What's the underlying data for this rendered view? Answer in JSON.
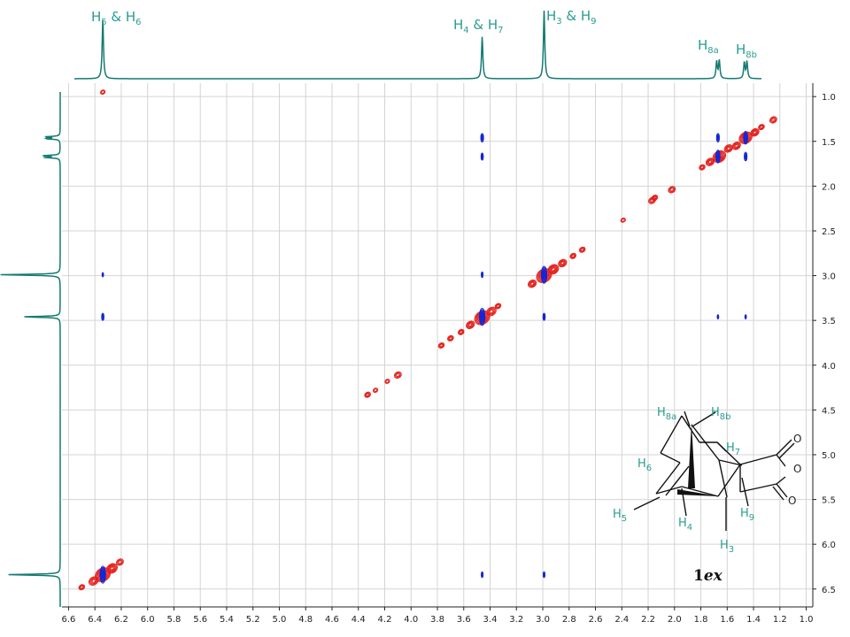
{
  "colors": {
    "trace": "#137a72",
    "label": "#2a9d8f",
    "positive_contour": "#e3201b",
    "negative_contour": "#1526d6",
    "grid": "#d4d4d4",
    "axis": "#222222"
  },
  "top_labels": [
    {
      "html": [
        "H",
        "5",
        " & H",
        "6"
      ],
      "ppm": 6.34
    },
    {
      "html": [
        "H",
        "4",
        " & H",
        "7"
      ],
      "ppm": 3.46
    },
    {
      "html": [
        "H",
        "3",
        " & H",
        "9"
      ],
      "ppm": 2.99
    },
    {
      "html": [
        "H",
        "8a"
      ],
      "ppm": 1.67
    },
    {
      "html": [
        "H",
        "8b"
      ],
      "ppm": 1.46
    }
  ],
  "compound_label": [
    "1",
    "ex"
  ],
  "molecule_labels": [
    {
      "base": "H",
      "sub": "8a"
    },
    {
      "base": "H",
      "sub": "8b"
    },
    {
      "base": "H",
      "sub": "7"
    },
    {
      "base": "H",
      "sub": "6"
    },
    {
      "base": "H",
      "sub": "5"
    },
    {
      "base": "H",
      "sub": "4"
    },
    {
      "base": "H",
      "sub": "9"
    },
    {
      "base": "H",
      "sub": "3"
    },
    {
      "base": "O",
      "sub": ""
    },
    {
      "base": "O",
      "sub": ""
    },
    {
      "base": "O",
      "sub": ""
    }
  ],
  "chart_data": {
    "type": "heatmap",
    "title": "",
    "xlabel": "",
    "ylabel": "",
    "x_axis": {
      "reversed": true,
      "range": [
        6.65,
        0.95
      ],
      "ticks": [
        6.6,
        6.4,
        6.2,
        6.0,
        5.8,
        5.6,
        5.4,
        5.2,
        5.0,
        4.8,
        4.6,
        4.4,
        4.2,
        4.0,
        3.8,
        3.6,
        3.4,
        3.2,
        3.0,
        2.8,
        2.6,
        2.4,
        2.2,
        2.0,
        1.8,
        1.6,
        1.4,
        1.2,
        1.0
      ]
    },
    "y_axis": {
      "reversed": true,
      "range": [
        0.85,
        6.7
      ],
      "ticks": [
        1.0,
        1.5,
        2.0,
        2.5,
        3.0,
        3.5,
        4.0,
        4.5,
        5.0,
        5.5,
        6.0,
        6.5
      ]
    },
    "grid": true,
    "spectrum_1d_peaks": [
      {
        "ppm": 6.34,
        "height": 0.87
      },
      {
        "ppm": 3.46,
        "height": 0.62
      },
      {
        "ppm": 2.99,
        "height": 1.0
      },
      {
        "ppm": 1.68,
        "height": 0.25
      },
      {
        "ppm": 1.66,
        "height": 0.27
      },
      {
        "ppm": 1.47,
        "height": 0.24
      },
      {
        "ppm": 1.45,
        "height": 0.25
      }
    ],
    "positive_peaks": [
      {
        "x": 6.34,
        "y": 0.95,
        "size": 0.4
      },
      {
        "x": 6.34,
        "y": 6.34,
        "size": 1.3
      },
      {
        "x": 6.27,
        "y": 6.27,
        "size": 0.9
      },
      {
        "x": 6.21,
        "y": 6.2,
        "size": 0.6
      },
      {
        "x": 6.41,
        "y": 6.41,
        "size": 0.8
      },
      {
        "x": 6.5,
        "y": 6.48,
        "size": 0.5
      },
      {
        "x": 4.33,
        "y": 4.33,
        "size": 0.5
      },
      {
        "x": 4.27,
        "y": 4.28,
        "size": 0.4
      },
      {
        "x": 4.18,
        "y": 4.18,
        "size": 0.4
      },
      {
        "x": 4.1,
        "y": 4.11,
        "size": 0.6
      },
      {
        "x": 3.77,
        "y": 3.78,
        "size": 0.5
      },
      {
        "x": 3.7,
        "y": 3.7,
        "size": 0.5
      },
      {
        "x": 3.62,
        "y": 3.63,
        "size": 0.5
      },
      {
        "x": 3.55,
        "y": 3.55,
        "size": 0.7
      },
      {
        "x": 3.46,
        "y": 3.47,
        "size": 1.3
      },
      {
        "x": 3.39,
        "y": 3.4,
        "size": 0.8
      },
      {
        "x": 3.34,
        "y": 3.34,
        "size": 0.5
      },
      {
        "x": 3.08,
        "y": 3.09,
        "size": 0.7
      },
      {
        "x": 2.99,
        "y": 3.0,
        "size": 1.3
      },
      {
        "x": 2.92,
        "y": 2.93,
        "size": 0.9
      },
      {
        "x": 2.85,
        "y": 2.86,
        "size": 0.7
      },
      {
        "x": 2.77,
        "y": 2.78,
        "size": 0.5
      },
      {
        "x": 2.7,
        "y": 2.71,
        "size": 0.5
      },
      {
        "x": 2.39,
        "y": 2.38,
        "size": 0.4
      },
      {
        "x": 2.17,
        "y": 2.16,
        "size": 0.6
      },
      {
        "x": 2.15,
        "y": 2.13,
        "size": 0.5
      },
      {
        "x": 2.02,
        "y": 2.04,
        "size": 0.6
      },
      {
        "x": 1.79,
        "y": 1.79,
        "size": 0.5
      },
      {
        "x": 1.73,
        "y": 1.73,
        "size": 0.7
      },
      {
        "x": 1.66,
        "y": 1.67,
        "size": 1.1
      },
      {
        "x": 1.59,
        "y": 1.58,
        "size": 0.7
      },
      {
        "x": 1.53,
        "y": 1.55,
        "size": 0.7
      },
      {
        "x": 1.46,
        "y": 1.46,
        "size": 1.1
      },
      {
        "x": 1.39,
        "y": 1.4,
        "size": 0.7
      },
      {
        "x": 1.34,
        "y": 1.34,
        "size": 0.5
      },
      {
        "x": 1.25,
        "y": 1.26,
        "size": 0.6
      }
    ],
    "negative_peaks": [
      {
        "x": 6.34,
        "y": 2.99,
        "size": 0.3
      },
      {
        "x": 6.34,
        "y": 3.46,
        "size": 0.5
      },
      {
        "x": 6.34,
        "y": 6.34,
        "size": 1.2
      },
      {
        "x": 3.46,
        "y": 1.46,
        "size": 0.6
      },
      {
        "x": 3.46,
        "y": 1.67,
        "size": 0.5
      },
      {
        "x": 3.46,
        "y": 2.99,
        "size": 0.4
      },
      {
        "x": 3.46,
        "y": 3.46,
        "size": 1.2
      },
      {
        "x": 3.46,
        "y": 6.34,
        "size": 0.4
      },
      {
        "x": 2.99,
        "y": 2.99,
        "size": 1.2
      },
      {
        "x": 2.99,
        "y": 3.46,
        "size": 0.5
      },
      {
        "x": 2.99,
        "y": 6.34,
        "size": 0.4
      },
      {
        "x": 1.67,
        "y": 1.46,
        "size": 0.6
      },
      {
        "x": 1.67,
        "y": 1.67,
        "size": 0.9
      },
      {
        "x": 1.67,
        "y": 3.46,
        "size": 0.3
      },
      {
        "x": 1.46,
        "y": 1.46,
        "size": 0.9
      },
      {
        "x": 1.46,
        "y": 1.67,
        "size": 0.6
      },
      {
        "x": 1.46,
        "y": 3.46,
        "size": 0.3
      }
    ]
  }
}
